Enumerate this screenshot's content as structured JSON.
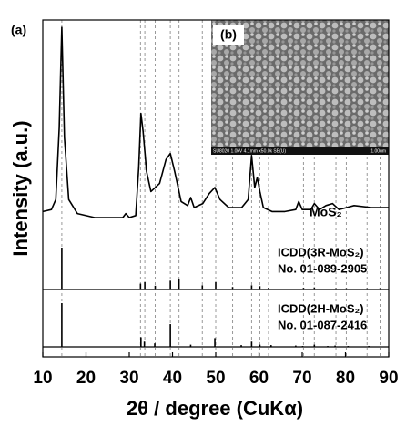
{
  "chart_data": [
    {
      "type": "line",
      "panel_label": "(a)",
      "x_label": "2θ / degree (CuKα)",
      "y_label": "Intensity (a.u.)",
      "annotation": "MoS₂",
      "inset": {
        "label": "(b)",
        "caption": "SU8020 1.0kV 4.1mm x50.0k SE(U)",
        "scale_bar": "1.00um"
      },
      "xlim": [
        10,
        90
      ],
      "xticks": [
        10,
        20,
        30,
        40,
        50,
        60,
        70,
        80,
        90
      ],
      "ylim": [
        0,
        100
      ],
      "color": "#000000",
      "x": [
        10,
        12,
        13,
        13.8,
        14.4,
        15,
        16,
        18,
        22,
        26,
        28.5,
        29.2,
        30,
        31.5,
        32.2,
        32.7,
        33.2,
        34,
        35,
        37,
        38.5,
        39.5,
        40.5,
        42,
        43.5,
        44.2,
        45,
        47,
        48.5,
        49.8,
        51,
        53,
        56,
        57.5,
        58.3,
        59,
        59.6,
        60.2,
        61,
        63,
        66,
        68.5,
        69.2,
        70,
        72,
        72.8,
        74,
        75.5,
        77,
        78.5,
        82,
        86,
        90
      ],
      "values": [
        8,
        9,
        14,
        50,
        100,
        45,
        14,
        7,
        5,
        5,
        5,
        7,
        5,
        6,
        30,
        57,
        48,
        28,
        18,
        22,
        34,
        37,
        28,
        13,
        11,
        15,
        10,
        12,
        17,
        20,
        14,
        10,
        10,
        14,
        36,
        20,
        25,
        18,
        10,
        8,
        8,
        9,
        13,
        9,
        9,
        12,
        9,
        11,
        12,
        9,
        11,
        10,
        10
      ]
    },
    {
      "type": "stick",
      "name": "ICDD(3R-MoS₂)",
      "reference": "No. 01-089-2905",
      "grid": true,
      "ylim": [
        0,
        100
      ],
      "color": "#000000",
      "x": [
        14.4,
        32.6,
        33.6,
        36.0,
        39.5,
        41.5,
        46.9,
        50.0,
        53.9,
        58.3,
        60.2,
        62.2,
        70.3,
        72.8,
        77.8,
        80.2,
        85.0,
        88.0
      ],
      "values": [
        100,
        14,
        18,
        9,
        21,
        25,
        10,
        18,
        6,
        10,
        8,
        4,
        4,
        5,
        3,
        3,
        3,
        3
      ]
    },
    {
      "type": "stick",
      "name": "ICDD(2H-MoS₂)",
      "reference": "No. 01-087-2416",
      "ylim": [
        0,
        100
      ],
      "color": "#000000",
      "x": [
        14.4,
        32.7,
        33.5,
        35.9,
        39.5,
        44.2,
        49.8,
        55.9,
        58.3,
        60.2,
        62.8,
        68.5,
        70.1,
        72.8,
        75.9,
        77.6,
        80.6,
        85.4
      ],
      "values": [
        100,
        22,
        12,
        8,
        52,
        5,
        20,
        4,
        12,
        5,
        4,
        3,
        2,
        5,
        2,
        3,
        2,
        2
      ]
    }
  ]
}
